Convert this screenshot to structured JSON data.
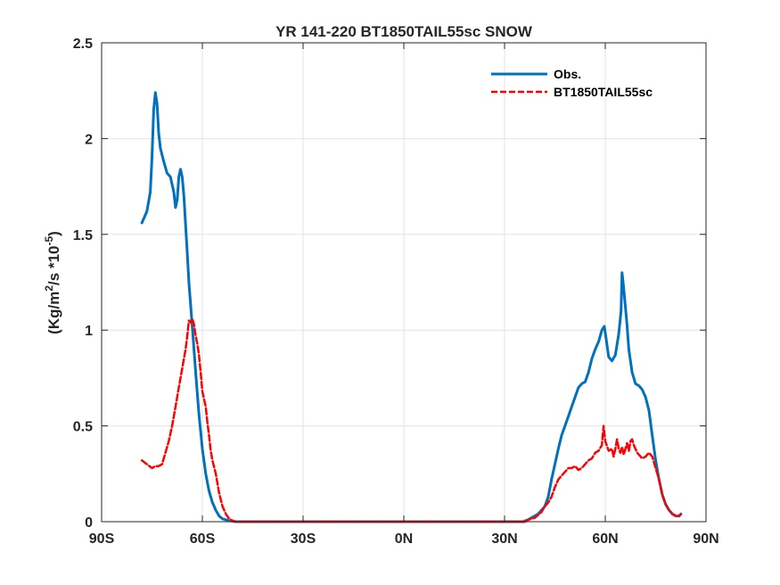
{
  "chart_data": {
    "type": "line",
    "title": "YR 141-220 BT1850TAIL55sc SNOW",
    "xlabel": "",
    "ylabel_parts": {
      "base": "(Kg/m",
      "sup1": "2",
      "mid": "/s *10",
      "sup2": "-5",
      "end": ")"
    },
    "xlim": [
      -90,
      90
    ],
    "ylim": [
      0,
      2.5
    ],
    "x_ticks": [
      -90,
      -60,
      -30,
      0,
      30,
      60,
      90
    ],
    "x_tick_labels": [
      "90S",
      "60S",
      "30S",
      "0N",
      "30N",
      "60N",
      "90N"
    ],
    "y_ticks": [
      0,
      0.5,
      1,
      1.5,
      2,
      2.5
    ],
    "y_tick_labels": [
      "0",
      "0.5",
      "1",
      "1.5",
      "2",
      "2.5"
    ],
    "grid": true,
    "legend_position": "top-right",
    "series": [
      {
        "name": "Obs.",
        "color": "#0072BD",
        "style": "solid",
        "points": [
          [
            -78,
            1.56
          ],
          [
            -76.5,
            1.62
          ],
          [
            -75.5,
            1.72
          ],
          [
            -75,
            1.9
          ],
          [
            -74.5,
            2.15
          ],
          [
            -74,
            2.24
          ],
          [
            -73.5,
            2.18
          ],
          [
            -73,
            2.03
          ],
          [
            -72.5,
            1.95
          ],
          [
            -71.5,
            1.88
          ],
          [
            -70.5,
            1.82
          ],
          [
            -69.5,
            1.8
          ],
          [
            -68.5,
            1.72
          ],
          [
            -68,
            1.64
          ],
          [
            -67.5,
            1.68
          ],
          [
            -67,
            1.8
          ],
          [
            -66.5,
            1.84
          ],
          [
            -66,
            1.8
          ],
          [
            -65.5,
            1.7
          ],
          [
            -65,
            1.55
          ],
          [
            -64.5,
            1.4
          ],
          [
            -64,
            1.25
          ],
          [
            -63,
            1.02
          ],
          [
            -62,
            0.78
          ],
          [
            -61,
            0.56
          ],
          [
            -60,
            0.38
          ],
          [
            -59,
            0.25
          ],
          [
            -58,
            0.16
          ],
          [
            -57,
            0.1
          ],
          [
            -56,
            0.06
          ],
          [
            -55,
            0.03
          ],
          [
            -54,
            0.015
          ],
          [
            -52,
            0.005
          ],
          [
            -50,
            0
          ],
          [
            36,
            0
          ],
          [
            38,
            0.02
          ],
          [
            40,
            0.04
          ],
          [
            42,
            0.08
          ],
          [
            43,
            0.13
          ],
          [
            44,
            0.22
          ],
          [
            45,
            0.3
          ],
          [
            46,
            0.38
          ],
          [
            47,
            0.45
          ],
          [
            48,
            0.5
          ],
          [
            49,
            0.55
          ],
          [
            50,
            0.6
          ],
          [
            51,
            0.65
          ],
          [
            52,
            0.7
          ],
          [
            53,
            0.72
          ],
          [
            54,
            0.73
          ],
          [
            55,
            0.78
          ],
          [
            56,
            0.85
          ],
          [
            57,
            0.9
          ],
          [
            58,
            0.94
          ],
          [
            59,
            1.0
          ],
          [
            59.7,
            1.02
          ],
          [
            60.3,
            0.95
          ],
          [
            61,
            0.86
          ],
          [
            62,
            0.84
          ],
          [
            63,
            0.87
          ],
          [
            64,
            0.98
          ],
          [
            64.7,
            1.1
          ],
          [
            65,
            1.3
          ],
          [
            65.3,
            1.25
          ],
          [
            66,
            1.12
          ],
          [
            66.5,
            1.02
          ],
          [
            67,
            0.9
          ],
          [
            68,
            0.78
          ],
          [
            69,
            0.72
          ],
          [
            70,
            0.71
          ],
          [
            71,
            0.69
          ],
          [
            72,
            0.65
          ],
          [
            73,
            0.58
          ],
          [
            74,
            0.45
          ],
          [
            75,
            0.32
          ],
          [
            76,
            0.22
          ],
          [
            77,
            0.14
          ],
          [
            78,
            0.09
          ],
          [
            79,
            0.06
          ],
          [
            80,
            0.04
          ],
          [
            81,
            0.03
          ],
          [
            82,
            0.03
          ],
          [
            82.5,
            0.04
          ]
        ]
      },
      {
        "name": "BT1850TAIL55sc",
        "color": "#FF0000",
        "style": "dashed",
        "points": [
          [
            -78,
            0.32
          ],
          [
            -76.5,
            0.3
          ],
          [
            -75,
            0.28
          ],
          [
            -74,
            0.29
          ],
          [
            -73,
            0.29
          ],
          [
            -72,
            0.3
          ],
          [
            -71,
            0.36
          ],
          [
            -70,
            0.42
          ],
          [
            -69,
            0.5
          ],
          [
            -68,
            0.6
          ],
          [
            -67,
            0.7
          ],
          [
            -66,
            0.8
          ],
          [
            -65,
            0.9
          ],
          [
            -64.5,
            0.97
          ],
          [
            -64,
            1.05
          ],
          [
            -63.5,
            1.04
          ],
          [
            -63,
            1.06
          ],
          [
            -62.5,
            1.03
          ],
          [
            -62,
            0.97
          ],
          [
            -61.5,
            0.93
          ],
          [
            -61,
            0.87
          ],
          [
            -60.5,
            0.78
          ],
          [
            -60,
            0.68
          ],
          [
            -59,
            0.6
          ],
          [
            -58.5,
            0.52
          ],
          [
            -58,
            0.45
          ],
          [
            -57.5,
            0.37
          ],
          [
            -57,
            0.32
          ],
          [
            -56,
            0.25
          ],
          [
            -55,
            0.15
          ],
          [
            -54,
            0.08
          ],
          [
            -53,
            0.04
          ],
          [
            -52,
            0.015
          ],
          [
            -51,
            0.005
          ],
          [
            -50,
            0
          ],
          [
            35,
            0
          ],
          [
            37,
            0.01
          ],
          [
            39,
            0.02
          ],
          [
            41,
            0.05
          ],
          [
            42,
            0.08
          ],
          [
            43,
            0.1
          ],
          [
            44,
            0.13
          ],
          [
            45,
            0.18
          ],
          [
            46,
            0.22
          ],
          [
            47,
            0.24
          ],
          [
            48,
            0.26
          ],
          [
            49,
            0.28
          ],
          [
            50,
            0.28
          ],
          [
            51,
            0.29
          ],
          [
            52,
            0.27
          ],
          [
            53,
            0.28
          ],
          [
            54,
            0.3
          ],
          [
            55,
            0.32
          ],
          [
            56,
            0.33
          ],
          [
            57,
            0.36
          ],
          [
            58,
            0.37
          ],
          [
            59,
            0.4
          ],
          [
            59.5,
            0.5
          ],
          [
            60,
            0.42
          ],
          [
            61,
            0.37
          ],
          [
            62,
            0.38
          ],
          [
            62.5,
            0.34
          ],
          [
            63,
            0.38
          ],
          [
            63.5,
            0.43
          ],
          [
            64,
            0.38
          ],
          [
            64.5,
            0.36
          ],
          [
            65,
            0.39
          ],
          [
            65.5,
            0.35
          ],
          [
            66,
            0.38
          ],
          [
            66.5,
            0.41
          ],
          [
            67,
            0.37
          ],
          [
            67.5,
            0.42
          ],
          [
            68,
            0.43
          ],
          [
            68.5,
            0.4
          ],
          [
            69,
            0.38
          ],
          [
            69.5,
            0.36
          ],
          [
            70,
            0.35
          ],
          [
            71,
            0.33
          ],
          [
            72,
            0.34
          ],
          [
            73,
            0.36
          ],
          [
            74,
            0.34
          ],
          [
            75,
            0.28
          ],
          [
            76,
            0.22
          ],
          [
            77,
            0.14
          ],
          [
            78,
            0.09
          ],
          [
            79,
            0.06
          ],
          [
            80,
            0.04
          ],
          [
            81,
            0.03
          ],
          [
            82,
            0.03
          ],
          [
            82.5,
            0.04
          ]
        ]
      }
    ]
  }
}
